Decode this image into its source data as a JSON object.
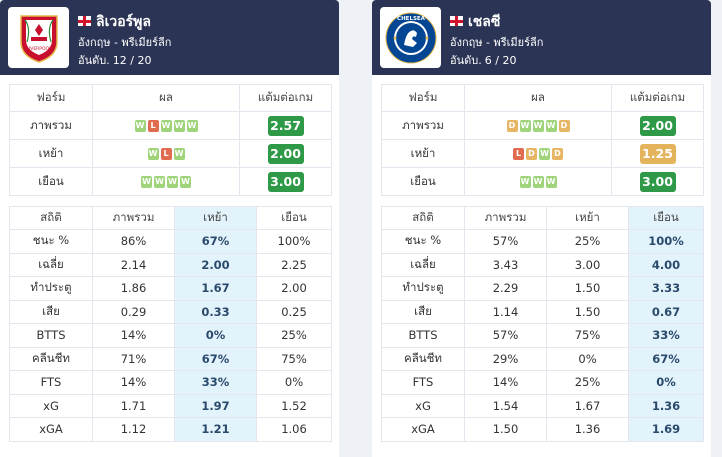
{
  "colors": {
    "header_bg": "#2b3454",
    "win": "#9fd47b",
    "loss": "#e06b4f",
    "draw": "#e6b664",
    "ppg_good": "#2e9a47",
    "ppg_mid": "#e3b45c",
    "highlight": "#e3f3fc"
  },
  "panels": [
    {
      "team": {
        "name": "ลิเวอร์พูล",
        "country_flag": "england-flag",
        "league": "อังกฤษ - พรีเมียร์ลีก",
        "rank_label": "อันดับ.",
        "rank_value": "12 / 20",
        "crest_icon": "liverpool-crest-icon",
        "crest_text": "LIVERPOOL"
      },
      "form": {
        "headers": [
          "ฟอร์ม",
          "ผล",
          "แต้มต่อเกม"
        ],
        "rows": [
          {
            "label": "ภาพรวม",
            "results": [
              "W",
              "L",
              "W",
              "W",
              "W"
            ],
            "ppg": "2.57",
            "ppg_level": "good"
          },
          {
            "label": "เหย้า",
            "results": [
              "W",
              "L",
              "W"
            ],
            "ppg": "2.00",
            "ppg_level": "good"
          },
          {
            "label": "เยือน",
            "results": [
              "W",
              "W",
              "W",
              "W"
            ],
            "ppg": "3.00",
            "ppg_level": "good"
          }
        ]
      },
      "stats": {
        "headers": [
          "สถิติ",
          "ภาพรวม",
          "เหย้า",
          "เยือน"
        ],
        "highlight_column": "เหย้า",
        "rows": [
          {
            "label": "ชนะ %",
            "overall": "86%",
            "home": "67%",
            "away": "100%"
          },
          {
            "label": "เฉลี่ย",
            "overall": "2.14",
            "home": "2.00",
            "away": "2.25"
          },
          {
            "label": "ทำประตู",
            "overall": "1.86",
            "home": "1.67",
            "away": "2.00"
          },
          {
            "label": "เสีย",
            "overall": "0.29",
            "home": "0.33",
            "away": "0.25"
          },
          {
            "label": "BTTS",
            "overall": "14%",
            "home": "0%",
            "away": "25%"
          },
          {
            "label": "คลีนชีท",
            "overall": "71%",
            "home": "67%",
            "away": "75%"
          },
          {
            "label": "FTS",
            "overall": "14%",
            "home": "33%",
            "away": "0%"
          },
          {
            "label": "xG",
            "overall": "1.71",
            "home": "1.97",
            "away": "1.52"
          },
          {
            "label": "xGA",
            "overall": "1.12",
            "home": "1.21",
            "away": "1.06"
          }
        ]
      }
    },
    {
      "team": {
        "name": "เชลซี",
        "country_flag": "england-flag",
        "league": "อังกฤษ - พรีเมียร์ลีก",
        "rank_label": "อันดับ.",
        "rank_value": "6 / 20",
        "crest_icon": "chelsea-crest-icon",
        "crest_text": "CHELSEA"
      },
      "form": {
        "headers": [
          "ฟอร์ม",
          "ผล",
          "แต้มต่อเกม"
        ],
        "rows": [
          {
            "label": "ภาพรวม",
            "results": [
              "D",
              "W",
              "W",
              "W",
              "D"
            ],
            "ppg": "2.00",
            "ppg_level": "good"
          },
          {
            "label": "เหย้า",
            "results": [
              "L",
              "D",
              "W",
              "D"
            ],
            "ppg": "1.25",
            "ppg_level": "mid"
          },
          {
            "label": "เยือน",
            "results": [
              "W",
              "W",
              "W"
            ],
            "ppg": "3.00",
            "ppg_level": "good"
          }
        ]
      },
      "stats": {
        "headers": [
          "สถิติ",
          "ภาพรวม",
          "เหย้า",
          "เยือน"
        ],
        "highlight_column": "เยือน",
        "rows": [
          {
            "label": "ชนะ %",
            "overall": "57%",
            "home": "25%",
            "away": "100%"
          },
          {
            "label": "เฉลี่ย",
            "overall": "3.43",
            "home": "3.00",
            "away": "4.00"
          },
          {
            "label": "ทำประตู",
            "overall": "2.29",
            "home": "1.50",
            "away": "3.33"
          },
          {
            "label": "เสีย",
            "overall": "1.14",
            "home": "1.50",
            "away": "0.67"
          },
          {
            "label": "BTTS",
            "overall": "57%",
            "home": "75%",
            "away": "33%"
          },
          {
            "label": "คลีนชีท",
            "overall": "29%",
            "home": "0%",
            "away": "67%"
          },
          {
            "label": "FTS",
            "overall": "14%",
            "home": "25%",
            "away": "0%"
          },
          {
            "label": "xG",
            "overall": "1.54",
            "home": "1.67",
            "away": "1.36"
          },
          {
            "label": "xGA",
            "overall": "1.50",
            "home": "1.36",
            "away": "1.69"
          }
        ]
      }
    }
  ]
}
